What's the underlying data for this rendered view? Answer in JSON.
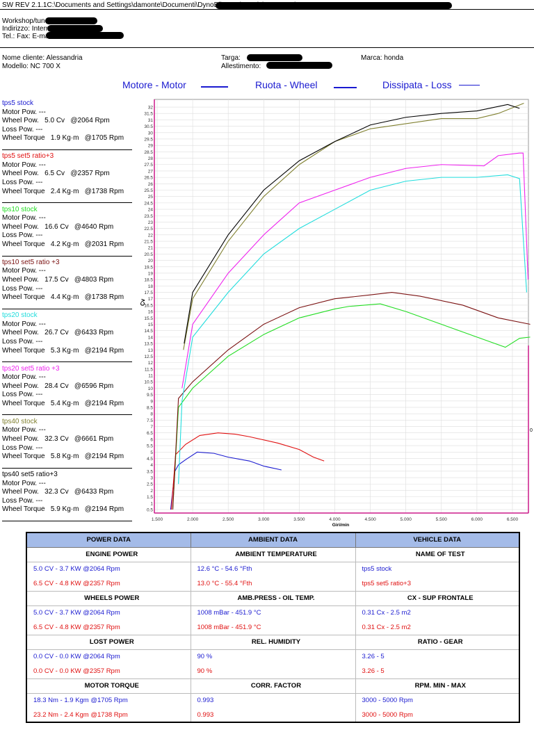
{
  "header": {
    "path": "SW REV 2.1.1C:\\Documents and Settings\\damonte\\Documenti\\DynoBikeTest\\Honda\\NC 700 X\\",
    "workshop_label": "Workshop/tuner:",
    "address_label": "Indirizzo:  Internet:",
    "contact_label": "Tel.:  Fax:  E-mail:"
  },
  "client": {
    "name": "Nome cliente: Alessandria",
    "model": "Modello: NC 700  X",
    "plate_label": "Targa:",
    "trim_label": "Allestimento:",
    "brand": "Marca: honda"
  },
  "legend": {
    "motor": "Motore - Motor",
    "wheel": "Ruota - Wheel",
    "loss": "Dissipata - Loss"
  },
  "runs": [
    {
      "name": "tps5 stock",
      "color": "#1a1ad0",
      "motor": "Motor Pow. ---",
      "wheel": "Wheel Pow.   5.0 Cv   @2064 Rpm",
      "loss": "Loss Pow. ---",
      "torque": "Wheel Torque   1.9 Kg·m   @1705 Rpm"
    },
    {
      "name": "tps5 set5 ratio+3",
      "color": "#e01010",
      "motor": "Motor Pow. ---",
      "wheel": "Wheel Pow.   6.5 Cv   @2357 Rpm",
      "loss": "Loss Pow. ---",
      "torque": "Wheel Torque   2.4 Kg·m   @1738 Rpm"
    },
    {
      "name": "tps10 stock",
      "color": "#22dd22",
      "motor": "Motor Pow. ---",
      "wheel": "Wheel Pow.   16.6 Cv   @4640 Rpm",
      "loss": "Loss Pow. ---",
      "torque": "Wheel Torque   4.2 Kg·m   @2031 Rpm"
    },
    {
      "name": "tps10 set5 ratio +3",
      "color": "#7a1010",
      "motor": "Motor Pow. ---",
      "wheel": "Wheel Pow.   17.5 Cv   @4803 Rpm",
      "loss": "Loss Pow. ---",
      "torque": "Wheel Torque   4.4 Kg·m   @1738 Rpm"
    },
    {
      "name": "tps20 stock",
      "color": "#22dddd",
      "motor": "Motor Pow. ---",
      "wheel": "Wheel Pow.   26.7 Cv   @6433 Rpm",
      "loss": "Loss Pow. ---",
      "torque": "Wheel Torque   5.3 Kg·m   @2194 Rpm"
    },
    {
      "name": "tps20 set5 ratio +3",
      "color": "#ee22ee",
      "motor": "Motor Pow. ---",
      "wheel": "Wheel Pow.   28.4 Cv   @6596 Rpm",
      "loss": "Loss Pow. ---",
      "torque": "Wheel Torque   5.4 Kg·m   @2194 Rpm"
    },
    {
      "name": "tps40 stock",
      "color": "#808030",
      "motor": "Motor Pow. ---",
      "wheel": "Wheel Pow.   32.3 Cv   @6661 Rpm",
      "loss": "Loss Pow. ---",
      "torque": "Wheel Torque   5.8 Kg·m   @2194 Rpm"
    },
    {
      "name": "tps40 set5 ratio+3",
      "color": "#000000",
      "motor": "Motor Pow. ---",
      "wheel": "Wheel Pow.   32.3 Cv   @6433 Rpm",
      "loss": "Loss Pow. ---",
      "torque": "Wheel Torque   5.9 Kg·m   @2194 Rpm"
    }
  ],
  "chart_data": {
    "type": "line",
    "xlabel": "Giri/min",
    "ylabel": "Cv",
    "right_label": "0",
    "xlim": [
      1470,
      6800
    ],
    "ylim": [
      0.3,
      32.6
    ],
    "xticks": [
      1500,
      2000,
      2500,
      3000,
      3500,
      4000,
      4500,
      5000,
      5500,
      6000,
      6500
    ],
    "xtick_labels": [
      "1.500",
      "2.000",
      "2.500",
      "3.000",
      "3.500",
      "4.000",
      "4.500",
      "5.000",
      "5.500",
      "6.000",
      "6.500"
    ],
    "series": [
      {
        "name": "tps5 stock",
        "color": "#1a1ad0",
        "points": [
          [
            1690,
            0.5
          ],
          [
            1750,
            3.5
          ],
          [
            1800,
            4.0
          ],
          [
            1900,
            4.4
          ],
          [
            2064,
            5.0
          ],
          [
            2300,
            4.9
          ],
          [
            2500,
            4.6
          ],
          [
            2800,
            4.3
          ],
          [
            3000,
            3.9
          ],
          [
            3250,
            3.6
          ]
        ]
      },
      {
        "name": "tps5 set5 ratio+3",
        "color": "#e01010",
        "points": [
          [
            1700,
            0.5
          ],
          [
            1760,
            4.8
          ],
          [
            1900,
            5.6
          ],
          [
            2100,
            6.3
          ],
          [
            2357,
            6.5
          ],
          [
            2600,
            6.4
          ],
          [
            2800,
            6.2
          ],
          [
            3200,
            5.7
          ],
          [
            3500,
            5.2
          ],
          [
            3700,
            4.6
          ],
          [
            3850,
            4.3
          ]
        ]
      },
      {
        "name": "tps10 stock",
        "color": "#22dd22",
        "points": [
          [
            1720,
            0.5
          ],
          [
            1800,
            8.5
          ],
          [
            2000,
            10
          ],
          [
            2200,
            11
          ],
          [
            2500,
            12.5
          ],
          [
            3000,
            14.2
          ],
          [
            3500,
            15.5
          ],
          [
            4000,
            16.2
          ],
          [
            4200,
            16.4
          ],
          [
            4640,
            16.6
          ],
          [
            5000,
            16.0
          ],
          [
            5500,
            15.0
          ],
          [
            6000,
            14.0
          ],
          [
            6400,
            13.2
          ],
          [
            6600,
            13.9
          ],
          [
            6750,
            14.0
          ]
        ]
      },
      {
        "name": "tps10 set5 ratio +3",
        "color": "#7a1010",
        "points": [
          [
            1720,
            0.5
          ],
          [
            1800,
            9.2
          ],
          [
            2000,
            10.5
          ],
          [
            2500,
            13
          ],
          [
            3000,
            15
          ],
          [
            3500,
            16.3
          ],
          [
            4000,
            17.0
          ],
          [
            4500,
            17.3
          ],
          [
            4803,
            17.5
          ],
          [
            5200,
            17.2
          ],
          [
            5800,
            16.5
          ],
          [
            6300,
            15.5
          ],
          [
            6750,
            15.0
          ]
        ]
      },
      {
        "name": "tps20 stock",
        "color": "#22dddd",
        "points": [
          [
            1800,
            2.5
          ],
          [
            1850,
            9
          ],
          [
            2000,
            14
          ],
          [
            2500,
            17.5
          ],
          [
            3000,
            20.5
          ],
          [
            3500,
            22.5
          ],
          [
            4000,
            24
          ],
          [
            4500,
            25.5
          ],
          [
            5000,
            26.2
          ],
          [
            5500,
            26.5
          ],
          [
            6000,
            26.5
          ],
          [
            6433,
            26.7
          ],
          [
            6600,
            26.4
          ],
          [
            6700,
            17.5
          ]
        ]
      },
      {
        "name": "tps20 set5 ratio +3",
        "color": "#ee22ee",
        "points": [
          [
            1850,
            10
          ],
          [
            2000,
            15
          ],
          [
            2500,
            19
          ],
          [
            3000,
            22
          ],
          [
            3500,
            24.5
          ],
          [
            4000,
            25.5
          ],
          [
            4500,
            26.5
          ],
          [
            5000,
            27.2
          ],
          [
            5500,
            27.5
          ],
          [
            6100,
            27.4
          ],
          [
            6300,
            28.2
          ],
          [
            6596,
            28.4
          ],
          [
            6650,
            28.4
          ],
          [
            6720,
            18.5
          ]
        ]
      },
      {
        "name": "tps40 stock",
        "color": "#808030",
        "points": [
          [
            1870,
            13
          ],
          [
            2000,
            17
          ],
          [
            2500,
            21.5
          ],
          [
            3000,
            25
          ],
          [
            3500,
            27.5
          ],
          [
            4000,
            29.3
          ],
          [
            4500,
            30.3
          ],
          [
            5000,
            30.7
          ],
          [
            5500,
            31.1
          ],
          [
            6000,
            31.1
          ],
          [
            6300,
            31.5
          ],
          [
            6661,
            32.3
          ]
        ]
      },
      {
        "name": "tps40 set5 ratio+3",
        "color": "#000000",
        "points": [
          [
            1880,
            13.5
          ],
          [
            2000,
            17.5
          ],
          [
            2500,
            22
          ],
          [
            3000,
            25.5
          ],
          [
            3500,
            27.8
          ],
          [
            4000,
            29.3
          ],
          [
            4500,
            30.6
          ],
          [
            5000,
            31.2
          ],
          [
            5500,
            31.5
          ],
          [
            6000,
            31.7
          ],
          [
            6433,
            32.2
          ],
          [
            6600,
            31.9
          ]
        ]
      }
    ]
  },
  "table": {
    "headers": [
      "POWER DATA",
      "AMBIENT DATA",
      "VEHICLE DATA"
    ],
    "sections": [
      {
        "titles": [
          "ENGINE POWER",
          "AMBIENT TEMPERATURE",
          "NAME OF TEST"
        ],
        "rows": [
          [
            "5.0 CV - 3.7 KW  @2064 Rpm",
            "12.6 °C - 54.6 °Fth",
            "tps5 stock"
          ],
          [
            "6.5 CV - 4.8 KW  @2357 Rpm",
            "13.0 °C - 55.4 °Fth",
            "tps5 set5 ratio+3"
          ]
        ]
      },
      {
        "titles": [
          "WHEELS POWER",
          "AMB.PRESS - OIL TEMP.",
          "CX - SUP FRONTALE"
        ],
        "rows": [
          [
            "5.0 CV - 3.7 KW  @2064 Rpm",
            "1008 mBar - 451.9 °C",
            "0.31 Cx - 2.5 m2"
          ],
          [
            "6.5 CV - 4.8 KW  @2357 Rpm",
            "1008 mBar - 451.9 °C",
            "0.31 Cx - 2.5 m2"
          ]
        ]
      },
      {
        "titles": [
          "LOST POWER",
          "REL. HUMIDITY",
          "RATIO - GEAR"
        ],
        "rows": [
          [
            "0.0 CV - 0.0 KW  @2064 Rpm",
            "90 %",
            "3.26 - 5"
          ],
          [
            "0.0 CV - 0.0 KW  @2357 Rpm",
            "90 %",
            "3.26 - 5"
          ]
        ]
      },
      {
        "titles": [
          "MOTOR TORQUE",
          "CORR. FACTOR",
          "RPM. MIN - MAX"
        ],
        "rows": [
          [
            "18.3 Nm - 1.9 Kgm  @1705 Rpm",
            "0.993",
            "3000 - 5000 Rpm"
          ],
          [
            "23.2 Nm - 2.4 Kgm  @1738 Rpm",
            "0.993",
            "3000 - 5000 Rpm"
          ]
        ]
      }
    ]
  }
}
